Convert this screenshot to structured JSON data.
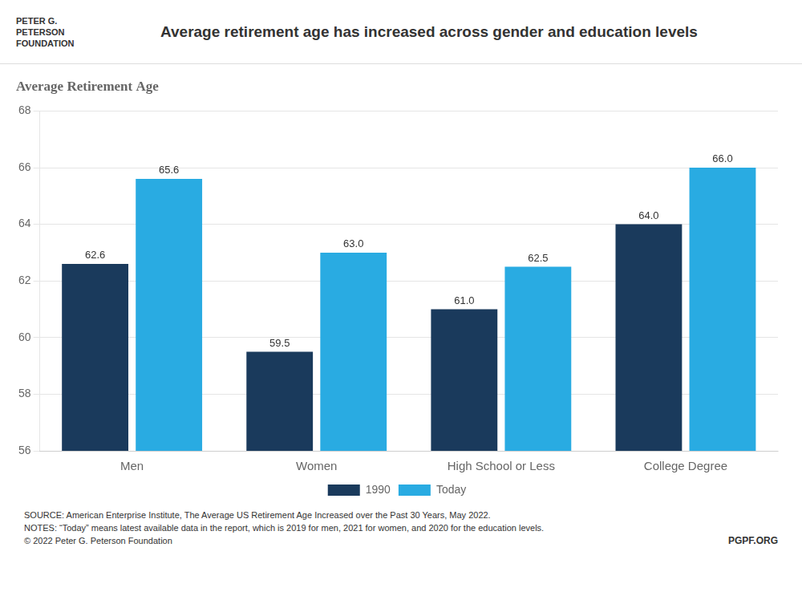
{
  "chart_data": {
    "type": "bar",
    "title": "Average retirement age has increased across gender and education levels",
    "subtitle": "Average Retirement Age",
    "categories": [
      "Men",
      "Women",
      "High School or Less",
      "College Degree"
    ],
    "series": [
      {
        "name": "1990",
        "color": "#1a3a5c",
        "values": [
          62.6,
          59.5,
          61.0,
          64.0
        ],
        "value_labels": [
          "62.6",
          "59.5",
          "61.0",
          "64.0"
        ]
      },
      {
        "name": "Today",
        "color": "#29abe2",
        "values": [
          65.6,
          63.0,
          62.5,
          66.0
        ],
        "value_labels": [
          "65.6",
          "63.0",
          "62.5",
          "66.0"
        ]
      }
    ],
    "ylim": [
      56,
      68
    ],
    "yticks": [
      56,
      58,
      60,
      62,
      64,
      66,
      68
    ],
    "grid": true,
    "legend": "bottom",
    "data_labels": true,
    "annotations": [
      "SOURCE: American Enterprise Institute, The Average US Retirement Age Increased over the Past 30 Years, May 2022.",
      "NOTES: “Today” means latest available data in the report, which is 2019 for men, 2021 for women, and 2020 for the education levels.",
      "© 2022 Peter G. Peterson Foundation",
      "PGPF.ORG",
      "PETER G.",
      "PETERSON",
      "FOUNDATION"
    ]
  }
}
